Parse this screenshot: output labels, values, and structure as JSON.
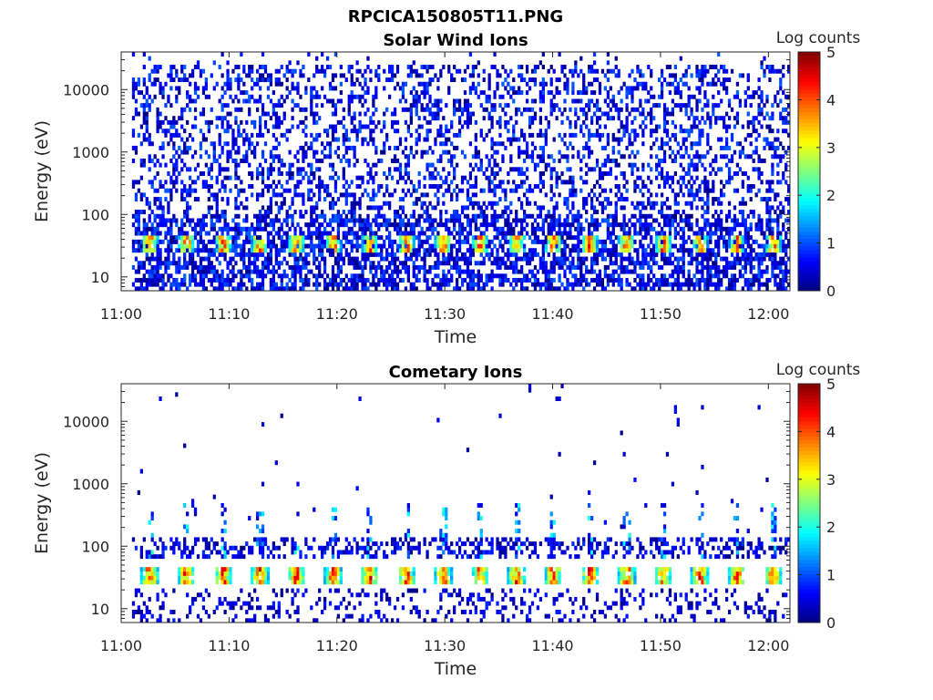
{
  "figure_title": "RPCICA150805T11.PNG",
  "chart_data": [
    {
      "type": "heatmap",
      "title": "Solar Wind Ions",
      "xlabel": "Time",
      "ylabel": "Energy (eV)",
      "x_ticks": [
        "11:00",
        "11:10",
        "11:20",
        "11:30",
        "11:40",
        "11:50",
        "12:00"
      ],
      "xlim": [
        "11:00",
        "12:02"
      ],
      "y_scale": "log",
      "y_ticks": [
        "10",
        "100",
        "1000",
        "10000"
      ],
      "ylim": [
        6,
        40000
      ],
      "colorbar": {
        "label": "Log counts",
        "range": [
          0,
          5
        ],
        "ticks": [
          "0",
          "1",
          "2",
          "3",
          "4",
          "5"
        ],
        "colormap": "jet"
      },
      "data_start": "11:01",
      "data_end": "12:02",
      "features": {
        "background": "sparse counts of 0-1 log counts spread across all energies, densest below ~100 eV",
        "band_energy_eV": 35,
        "band_peak_log_counts": 4.5,
        "band_period_min": 3.4
      }
    },
    {
      "type": "heatmap",
      "title": "Cometary Ions",
      "xlabel": "Time",
      "ylabel": "Energy (eV)",
      "x_ticks": [
        "11:00",
        "11:10",
        "11:20",
        "11:30",
        "11:40",
        "11:50",
        "12:00"
      ],
      "xlim": [
        "11:00",
        "12:02"
      ],
      "y_scale": "log",
      "y_ticks": [
        "10",
        "100",
        "1000",
        "10000"
      ],
      "ylim": [
        6,
        40000
      ],
      "colorbar": {
        "label": "Log counts",
        "range": [
          0,
          5
        ],
        "ticks": [
          "0",
          "1",
          "2",
          "3",
          "4",
          "5"
        ],
        "colormap": "jet"
      },
      "data_start": "11:01",
      "data_end": "12:02",
      "features": {
        "background": "isolated single counts above 100 eV",
        "band_energy_eV": 35,
        "band_peak_log_counts": 4.8,
        "band_period_min": 3.4,
        "spikes_to_eV": 500
      }
    }
  ]
}
